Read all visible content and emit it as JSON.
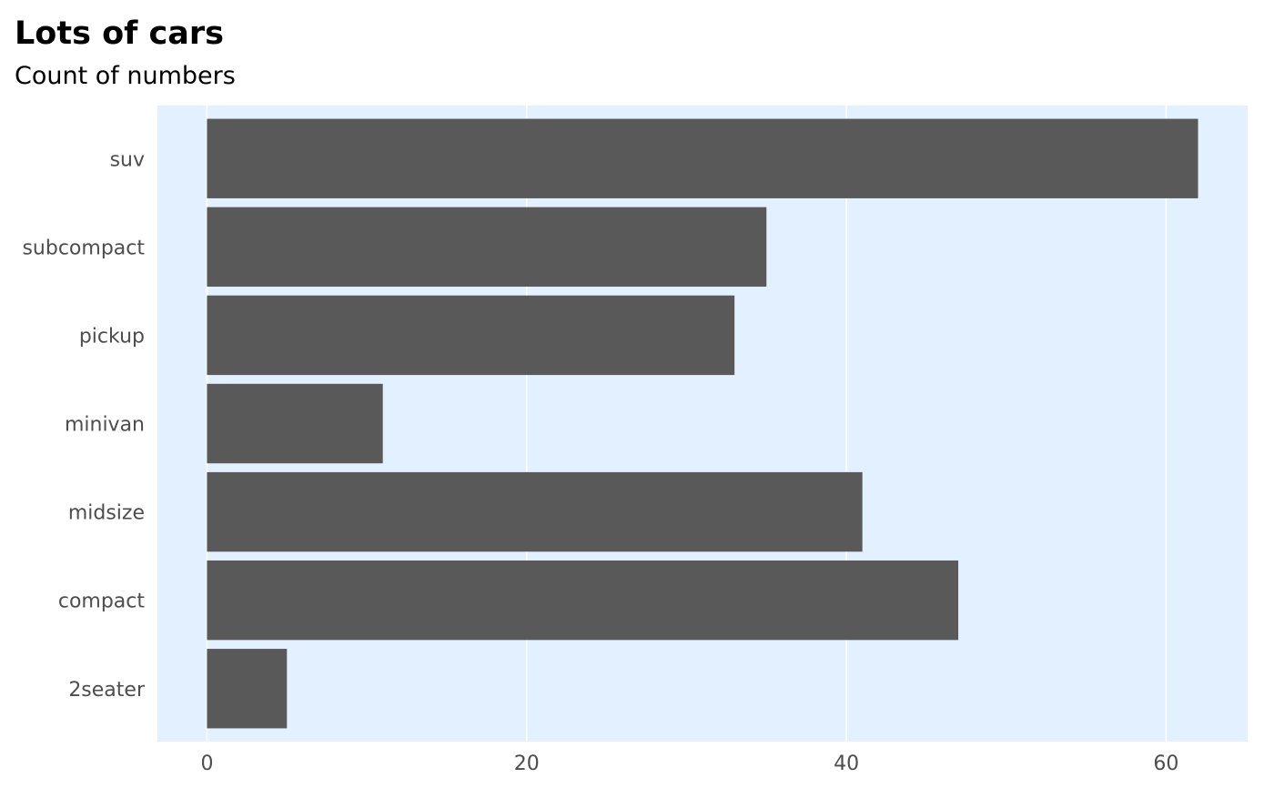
{
  "chart_data": {
    "type": "bar",
    "orientation": "horizontal",
    "title": "Lots of cars",
    "subtitle": "Count of numbers",
    "xlabel": "",
    "ylabel": "",
    "categories": [
      "2seater",
      "compact",
      "midsize",
      "minivan",
      "pickup",
      "subcompact",
      "suv"
    ],
    "values": [
      5,
      47,
      41,
      11,
      33,
      35,
      62
    ],
    "xlim": [
      -3.1,
      65.1
    ],
    "xticks": [
      0,
      20,
      40,
      60
    ],
    "grid": "vertical-major",
    "legend": "none",
    "colors": {
      "bar": "#595959",
      "panel": "#e2f0ff",
      "grid": "#ffffff",
      "text": "#4d4d4d"
    }
  }
}
